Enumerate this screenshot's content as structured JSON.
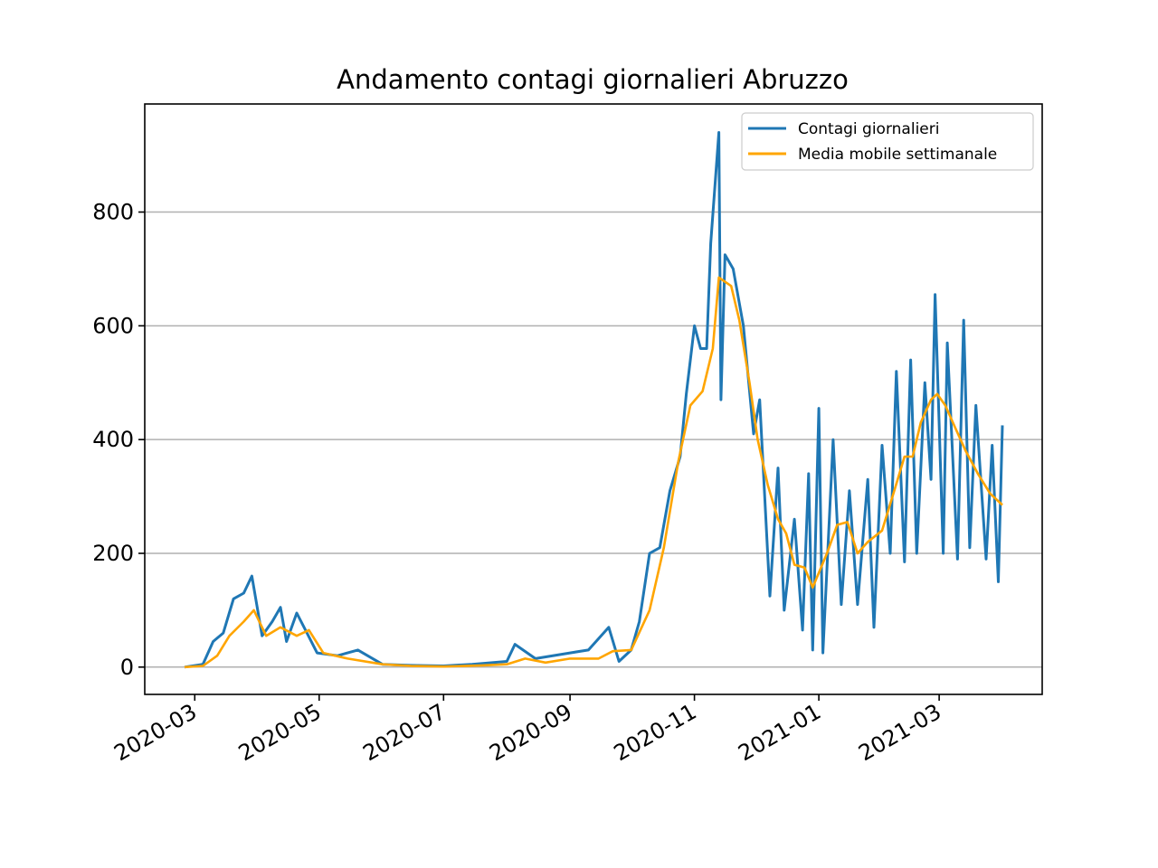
{
  "chart_data": {
    "type": "line",
    "title": "Andamento contagi giornalieri Abruzzo",
    "xlabel": "",
    "ylabel": "",
    "x_start": "2020-02-25",
    "x_end": "2021-04-01",
    "x_tick_labels": [
      "2020-03",
      "2020-05",
      "2020-07",
      "2020-09",
      "2020-11",
      "2021-01",
      "2021-03"
    ],
    "x_tick_dates": [
      "2020-03-01",
      "2020-05-01",
      "2020-07-01",
      "2020-09-01",
      "2020-11-01",
      "2021-01-01",
      "2021-03-01"
    ],
    "y_tick_labels": [
      "0",
      "200",
      "400",
      "600",
      "800"
    ],
    "y_ticks": [
      0,
      200,
      400,
      600,
      800
    ],
    "ylim": [
      -48,
      990
    ],
    "grid": "horizontal",
    "legend_position": "top-right",
    "series": [
      {
        "name": "Contagi giornalieri",
        "color": "#1f77b4",
        "anchors": [
          [
            "2020-02-25",
            0
          ],
          [
            "2020-03-05",
            5
          ],
          [
            "2020-03-10",
            45
          ],
          [
            "2020-03-15",
            60
          ],
          [
            "2020-03-20",
            120
          ],
          [
            "2020-03-25",
            130
          ],
          [
            "2020-03-29",
            160
          ],
          [
            "2020-04-03",
            55
          ],
          [
            "2020-04-08",
            80
          ],
          [
            "2020-04-12",
            105
          ],
          [
            "2020-04-15",
            45
          ],
          [
            "2020-04-20",
            95
          ],
          [
            "2020-04-25",
            60
          ],
          [
            "2020-04-30",
            25
          ],
          [
            "2020-05-10",
            20
          ],
          [
            "2020-05-20",
            30
          ],
          [
            "2020-06-01",
            5
          ],
          [
            "2020-06-15",
            3
          ],
          [
            "2020-07-01",
            2
          ],
          [
            "2020-07-15",
            5
          ],
          [
            "2020-08-01",
            10
          ],
          [
            "2020-08-05",
            40
          ],
          [
            "2020-08-15",
            15
          ],
          [
            "2020-09-01",
            25
          ],
          [
            "2020-09-10",
            30
          ],
          [
            "2020-09-20",
            70
          ],
          [
            "2020-09-25",
            10
          ],
          [
            "2020-10-01",
            30
          ],
          [
            "2020-10-05",
            80
          ],
          [
            "2020-10-10",
            200
          ],
          [
            "2020-10-15",
            210
          ],
          [
            "2020-10-20",
            310
          ],
          [
            "2020-10-25",
            370
          ],
          [
            "2020-10-28",
            480
          ],
          [
            "2020-11-01",
            600
          ],
          [
            "2020-11-04",
            560
          ],
          [
            "2020-11-07",
            560
          ],
          [
            "2020-11-09",
            745
          ],
          [
            "2020-11-13",
            940
          ],
          [
            "2020-11-14",
            470
          ],
          [
            "2020-11-16",
            725
          ],
          [
            "2020-11-20",
            700
          ],
          [
            "2020-11-25",
            600
          ],
          [
            "2020-11-30",
            410
          ],
          [
            "2020-12-03",
            470
          ],
          [
            "2020-12-08",
            125
          ],
          [
            "2020-12-12",
            350
          ],
          [
            "2020-12-15",
            100
          ],
          [
            "2020-12-20",
            260
          ],
          [
            "2020-12-24",
            65
          ],
          [
            "2020-12-27",
            340
          ],
          [
            "2020-12-29",
            30
          ],
          [
            "2021-01-01",
            455
          ],
          [
            "2021-01-03",
            25
          ],
          [
            "2021-01-08",
            400
          ],
          [
            "2021-01-12",
            110
          ],
          [
            "2021-01-16",
            310
          ],
          [
            "2021-01-20",
            110
          ],
          [
            "2021-01-25",
            330
          ],
          [
            "2021-01-28",
            70
          ],
          [
            "2021-02-01",
            390
          ],
          [
            "2021-02-05",
            200
          ],
          [
            "2021-02-08",
            520
          ],
          [
            "2021-02-12",
            185
          ],
          [
            "2021-02-15",
            540
          ],
          [
            "2021-02-18",
            200
          ],
          [
            "2021-02-22",
            500
          ],
          [
            "2021-02-25",
            330
          ],
          [
            "2021-02-27",
            655
          ],
          [
            "2021-03-03",
            200
          ],
          [
            "2021-03-05",
            570
          ],
          [
            "2021-03-10",
            190
          ],
          [
            "2021-03-13",
            610
          ],
          [
            "2021-03-16",
            210
          ],
          [
            "2021-03-19",
            460
          ],
          [
            "2021-03-24",
            190
          ],
          [
            "2021-03-27",
            390
          ],
          [
            "2021-03-30",
            150
          ],
          [
            "2021-04-01",
            425
          ]
        ]
      },
      {
        "name": "Media mobile settimanale",
        "color": "#ffa500",
        "anchors": [
          [
            "2020-02-25",
            0
          ],
          [
            "2020-03-05",
            2
          ],
          [
            "2020-03-12",
            20
          ],
          [
            "2020-03-18",
            55
          ],
          [
            "2020-03-25",
            80
          ],
          [
            "2020-03-30",
            100
          ],
          [
            "2020-04-05",
            55
          ],
          [
            "2020-04-12",
            70
          ],
          [
            "2020-04-20",
            55
          ],
          [
            "2020-04-26",
            65
          ],
          [
            "2020-05-03",
            25
          ],
          [
            "2020-05-15",
            15
          ],
          [
            "2020-06-01",
            5
          ],
          [
            "2020-06-15",
            2
          ],
          [
            "2020-07-01",
            1
          ],
          [
            "2020-07-20",
            3
          ],
          [
            "2020-08-01",
            5
          ],
          [
            "2020-08-10",
            15
          ],
          [
            "2020-08-20",
            8
          ],
          [
            "2020-09-01",
            15
          ],
          [
            "2020-09-15",
            15
          ],
          [
            "2020-09-22",
            28
          ],
          [
            "2020-10-01",
            30
          ],
          [
            "2020-10-10",
            100
          ],
          [
            "2020-10-17",
            210
          ],
          [
            "2020-10-24",
            360
          ],
          [
            "2020-10-30",
            460
          ],
          [
            "2020-11-05",
            485
          ],
          [
            "2020-11-10",
            560
          ],
          [
            "2020-11-13",
            685
          ],
          [
            "2020-11-19",
            670
          ],
          [
            "2020-11-23",
            610
          ],
          [
            "2020-11-28",
            500
          ],
          [
            "2020-12-02",
            400
          ],
          [
            "2020-12-07",
            320
          ],
          [
            "2020-12-12",
            260
          ],
          [
            "2020-12-16",
            235
          ],
          [
            "2020-12-20",
            180
          ],
          [
            "2020-12-25",
            175
          ],
          [
            "2020-12-29",
            140
          ],
          [
            "2021-01-05",
            200
          ],
          [
            "2021-01-10",
            250
          ],
          [
            "2021-01-15",
            255
          ],
          [
            "2021-01-20",
            200
          ],
          [
            "2021-01-25",
            220
          ],
          [
            "2021-02-01",
            240
          ],
          [
            "2021-02-07",
            310
          ],
          [
            "2021-02-12",
            370
          ],
          [
            "2021-02-16",
            370
          ],
          [
            "2021-02-20",
            430
          ],
          [
            "2021-02-25",
            470
          ],
          [
            "2021-02-28",
            480
          ],
          [
            "2021-03-04",
            460
          ],
          [
            "2021-03-09",
            420
          ],
          [
            "2021-03-14",
            380
          ],
          [
            "2021-03-20",
            340
          ],
          [
            "2021-03-26",
            305
          ],
          [
            "2021-04-01",
            285
          ]
        ]
      }
    ]
  }
}
